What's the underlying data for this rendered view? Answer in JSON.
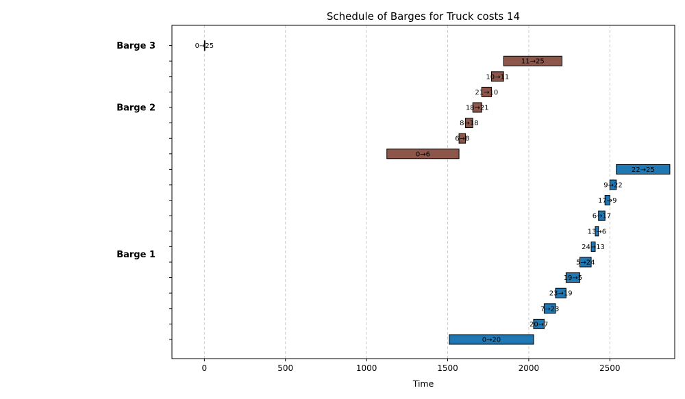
{
  "chart_data": {
    "type": "gantt",
    "title": "Schedule of Barges for Truck costs 14",
    "xlabel": "Time",
    "ylabel": "",
    "xlim": [
      -200,
      2900
    ],
    "xticks": [
      0,
      500,
      1000,
      1500,
      2000,
      2500
    ],
    "grid": "vertical-dashed",
    "colors": {
      "Barge 1": "#1f77b4",
      "Barge 2": "#8c564b",
      "Barge 3": "#8c564b"
    },
    "group_labels": [
      {
        "name": "Barge 3",
        "row": 19
      },
      {
        "name": "Barge 2",
        "row": 15
      },
      {
        "name": "Barge 1",
        "row": 5.5
      }
    ],
    "tasks": [
      {
        "barge": "Barge 1",
        "label": "0→20",
        "start": 1510,
        "end": 2030,
        "row": 0
      },
      {
        "barge": "Barge 1",
        "label": "20→7",
        "start": 2030,
        "end": 2095,
        "row": 1
      },
      {
        "barge": "Barge 1",
        "label": "7→23",
        "start": 2095,
        "end": 2165,
        "row": 2
      },
      {
        "barge": "Barge 1",
        "label": "23→19",
        "start": 2165,
        "end": 2230,
        "row": 3
      },
      {
        "barge": "Barge 1",
        "label": "19→5",
        "start": 2230,
        "end": 2315,
        "row": 4
      },
      {
        "barge": "Barge 1",
        "label": "5→24",
        "start": 2315,
        "end": 2385,
        "row": 5
      },
      {
        "barge": "Barge 1",
        "label": "24→13",
        "start": 2385,
        "end": 2410,
        "row": 6
      },
      {
        "barge": "Barge 1",
        "label": "13→6",
        "start": 2410,
        "end": 2430,
        "row": 7
      },
      {
        "barge": "Barge 1",
        "label": "6→17",
        "start": 2430,
        "end": 2470,
        "row": 8
      },
      {
        "barge": "Barge 1",
        "label": "17→9",
        "start": 2470,
        "end": 2500,
        "row": 9
      },
      {
        "barge": "Barge 1",
        "label": "9→22",
        "start": 2500,
        "end": 2540,
        "row": 10
      },
      {
        "barge": "Barge 1",
        "label": "22→25",
        "start": 2540,
        "end": 2870,
        "row": 11
      },
      {
        "barge": "Barge 2",
        "label": "0→6",
        "start": 1125,
        "end": 1570,
        "row": 12
      },
      {
        "barge": "Barge 2",
        "label": "6→8",
        "start": 1570,
        "end": 1610,
        "row": 13
      },
      {
        "barge": "Barge 2",
        "label": "8→18",
        "start": 1610,
        "end": 1655,
        "row": 14
      },
      {
        "barge": "Barge 2",
        "label": "18→21",
        "start": 1655,
        "end": 1710,
        "row": 15
      },
      {
        "barge": "Barge 2",
        "label": "21→10",
        "start": 1710,
        "end": 1770,
        "row": 16
      },
      {
        "barge": "Barge 2",
        "label": "10→11",
        "start": 1770,
        "end": 1845,
        "row": 17
      },
      {
        "barge": "Barge 2",
        "label": "11→25",
        "start": 1845,
        "end": 2205,
        "row": 18
      },
      {
        "barge": "Barge 3",
        "label": "0→25",
        "start": 0,
        "end": 0,
        "row": 19
      }
    ]
  }
}
